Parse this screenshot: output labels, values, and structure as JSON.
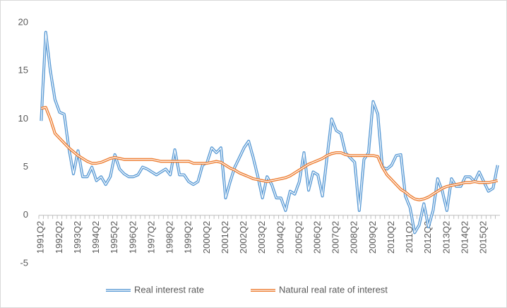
{
  "chart_data": {
    "type": "line",
    "categories": [
      "1991Q2",
      null,
      null,
      null,
      "1992Q2",
      null,
      null,
      null,
      "1993Q2",
      null,
      null,
      null,
      "1994Q2",
      null,
      null,
      null,
      "1995Q2",
      null,
      null,
      null,
      "1996Q2",
      null,
      null,
      null,
      "1997Q2",
      null,
      null,
      null,
      "1998Q2",
      null,
      null,
      null,
      "1999Q2",
      null,
      null,
      null,
      "2000Q2",
      null,
      null,
      null,
      "2001Q2",
      null,
      null,
      null,
      "2002Q2",
      null,
      null,
      null,
      "2003Q2",
      null,
      null,
      null,
      "2004Q2",
      null,
      null,
      null,
      "2005Q2",
      null,
      null,
      null,
      "2006Q2",
      null,
      null,
      null,
      "2007Q2",
      null,
      null,
      null,
      "2008Q2",
      null,
      null,
      null,
      "2009Q2",
      null,
      null,
      null,
      "2010Q2",
      null,
      null,
      null,
      "2011Q2",
      null,
      null,
      null,
      "2012Q2",
      null,
      null,
      null,
      "2013Q2",
      null,
      null,
      null,
      "2014Q2",
      null,
      null,
      null,
      "2015Q2",
      null,
      null,
      null
    ],
    "series": [
      {
        "name": "Real interest rate",
        "color": "#5b9bd5",
        "values": [
          9.8,
          19,
          15,
          12,
          10.7,
          10.5,
          7,
          4.3,
          6.7,
          4,
          4,
          5,
          3.6,
          4,
          3.2,
          4,
          6.3,
          4.8,
          4.3,
          4,
          4,
          4.2,
          5,
          4.8,
          4.5,
          4.2,
          4.5,
          4.8,
          4.2,
          6.8,
          4.2,
          4.2,
          3.5,
          3.2,
          3.5,
          5.2,
          5.5,
          7,
          6.5,
          7,
          1.8,
          3.5,
          5,
          6,
          7,
          7.7,
          6,
          4,
          1.8,
          4,
          3.2,
          1.8,
          1.8,
          0.5,
          2.5,
          2.2,
          3.5,
          6.5,
          2.6,
          4.5,
          4.2,
          2,
          6,
          10,
          8.8,
          8.5,
          6.5,
          6,
          5.5,
          0.5,
          5.8,
          6.5,
          11.8,
          10.5,
          5,
          4.8,
          5.2,
          6.2,
          6.3,
          2,
          0.8,
          -1.8,
          -1,
          1.2,
          -1.2,
          0.5,
          3.8,
          2.5,
          0.5,
          3.8,
          3,
          3,
          4,
          4,
          3.5,
          4.5,
          3.5,
          2.5,
          2.8,
          5.2
        ]
      },
      {
        "name": "Natural real rate of interest",
        "color": "#ed7d31",
        "values": [
          11.1,
          11.2,
          10,
          8.5,
          8,
          7.5,
          7,
          6.6,
          6.2,
          5.9,
          5.6,
          5.4,
          5.4,
          5.5,
          5.7,
          5.9,
          6,
          5.9,
          5.8,
          5.8,
          5.8,
          5.8,
          5.8,
          5.8,
          5.8,
          5.7,
          5.6,
          5.6,
          5.6,
          5.6,
          5.6,
          5.6,
          5.6,
          5.4,
          5.4,
          5.4,
          5.4,
          5.5,
          5.6,
          5.5,
          5.2,
          4.9,
          4.7,
          4.4,
          4.2,
          4,
          3.8,
          3.7,
          3.6,
          3.5,
          3.6,
          3.7,
          3.8,
          3.9,
          4.1,
          4.4,
          4.7,
          5,
          5.3,
          5.5,
          5.7,
          5.9,
          6.2,
          6.4,
          6.5,
          6.5,
          6.3,
          6.2,
          6.2,
          6.2,
          6.2,
          6.2,
          6.2,
          6.1,
          5,
          4.2,
          3.7,
          3.2,
          2.7,
          2.4,
          2,
          1.7,
          1.6,
          1.7,
          1.9,
          2.2,
          2.5,
          2.8,
          3,
          3.1,
          3.2,
          3.3,
          3.4,
          3.4,
          3.5,
          3.4,
          3.4,
          3.4,
          3.5,
          3.6
        ]
      }
    ],
    "ylim": [
      -5,
      20
    ],
    "yticks": [
      -5,
      0,
      5,
      10,
      15,
      20
    ],
    "grid": false,
    "legend": "bottom"
  }
}
